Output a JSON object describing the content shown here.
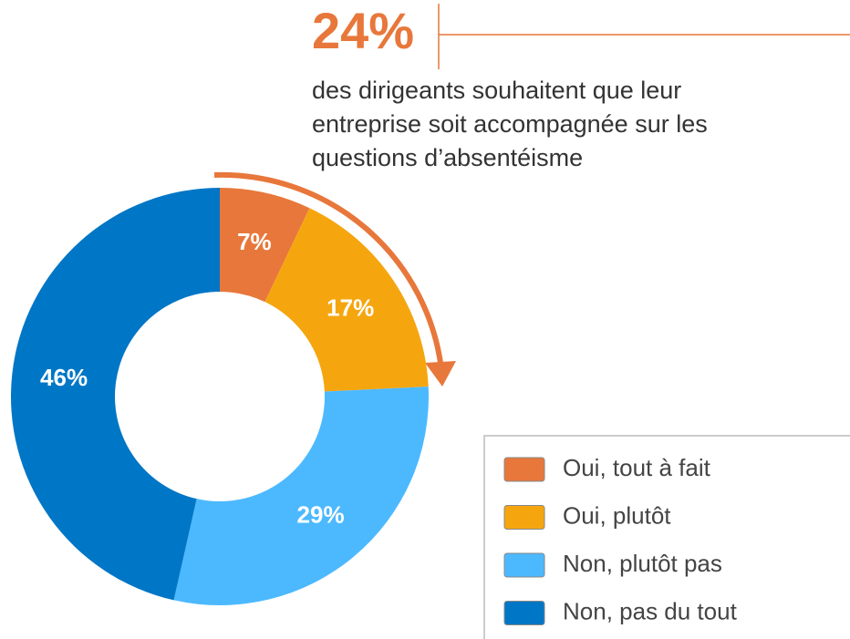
{
  "chart_data": {
    "type": "donut",
    "categories": [
      "Oui, tout à fait",
      "Oui, plutôt",
      "Non, plutôt pas",
      "Non, pas du tout"
    ],
    "values": [
      7,
      17,
      29,
      46
    ],
    "value_labels": [
      "7%",
      "17%",
      "29%",
      "46%"
    ],
    "colors": [
      "#e8773b",
      "#f5a60f",
      "#4cb9ff",
      "#0076c6"
    ],
    "annotation": {
      "highlight": "24%",
      "lines": [
        "des dirigeants souhaitent que leur",
        "entreprise soit accompagnée sur les",
        "questions d’absentéisme"
      ]
    }
  }
}
